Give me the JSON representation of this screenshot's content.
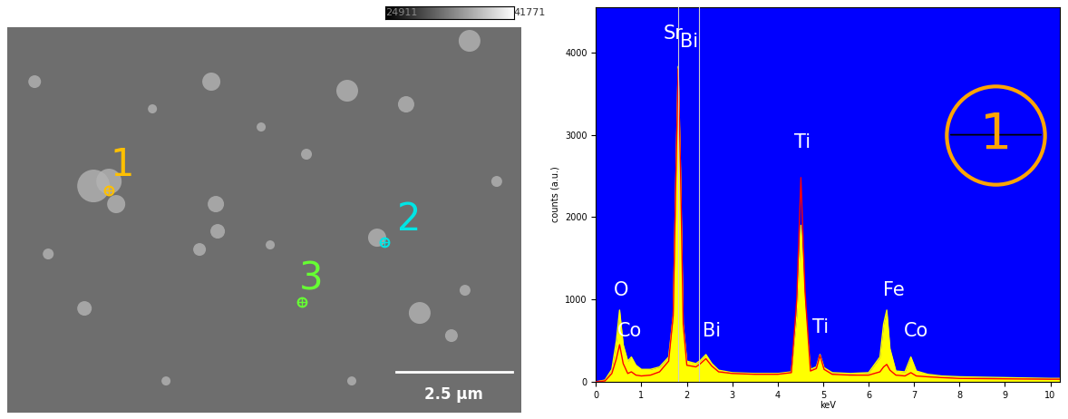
{
  "sem_image": {
    "colorbar_min": 24911,
    "colorbar_max": 41771,
    "scale_bar": "2.5 µm",
    "points": [
      {
        "label": "1",
        "color": "#ffc000"
      },
      {
        "label": "2",
        "color": "#00e5e5"
      },
      {
        "label": "3",
        "color": "#66ff33"
      }
    ]
  },
  "chart_data": {
    "type": "line",
    "xlabel": "keV",
    "ylabel": "counts (a.u.)",
    "x": [
      0.0,
      0.2,
      0.35,
      0.45,
      0.52,
      0.6,
      0.7,
      0.78,
      0.88,
      1.0,
      1.2,
      1.4,
      1.6,
      1.7,
      1.76,
      1.81,
      1.86,
      1.92,
      2.0,
      2.2,
      2.3,
      2.42,
      2.55,
      2.7,
      3.0,
      3.5,
      4.0,
      4.3,
      4.42,
      4.51,
      4.6,
      4.72,
      4.85,
      4.93,
      5.02,
      5.2,
      5.6,
      6.0,
      6.25,
      6.33,
      6.4,
      6.47,
      6.6,
      6.8,
      6.93,
      7.05,
      7.3,
      7.6,
      8.0,
      9.0,
      10.0,
      10.2
    ],
    "series": [
      {
        "type": "area",
        "color": "#ffff00",
        "values": [
          0,
          20,
          150,
          500,
          870,
          450,
          250,
          300,
          200,
          150,
          150,
          180,
          300,
          800,
          2500,
          3830,
          2600,
          700,
          250,
          220,
          260,
          330,
          220,
          140,
          110,
          100,
          100,
          120,
          800,
          1900,
          900,
          150,
          180,
          330,
          170,
          110,
          100,
          110,
          300,
          700,
          870,
          400,
          130,
          120,
          300,
          130,
          90,
          70,
          60,
          50,
          40,
          40
        ]
      },
      {
        "type": "line",
        "color": "#ff0000",
        "values": [
          0,
          10,
          100,
          280,
          450,
          220,
          100,
          120,
          80,
          70,
          80,
          120,
          250,
          800,
          2500,
          3800,
          2600,
          700,
          200,
          180,
          220,
          280,
          190,
          120,
          100,
          90,
          90,
          110,
          1000,
          2480,
          1100,
          130,
          160,
          320,
          150,
          90,
          80,
          80,
          120,
          180,
          210,
          140,
          80,
          70,
          110,
          70,
          60,
          50,
          40,
          35,
          30,
          30
        ]
      }
    ],
    "marker_lines": [
      1.81,
      2.27
    ],
    "xlim": [
      0,
      10.2
    ],
    "xticks": [
      0,
      1,
      2,
      3,
      4,
      5,
      6,
      7,
      8,
      9,
      10
    ],
    "ylim": [
      0,
      4550
    ],
    "yticks": [
      0,
      1000,
      2000,
      3000,
      4000
    ],
    "annotations": [
      {
        "text": "O",
        "x": 0.55,
        "y": 1000
      },
      {
        "text": "Co",
        "x": 0.75,
        "y": 500
      },
      {
        "text": "Sr",
        "x": 1.7,
        "y": 4120
      },
      {
        "text": "Bi",
        "x": 2.05,
        "y": 4020
      },
      {
        "text": "Bi",
        "x": 2.55,
        "y": 500
      },
      {
        "text": "Ti",
        "x": 4.55,
        "y": 2800
      },
      {
        "text": "Ti",
        "x": 4.95,
        "y": 550
      },
      {
        "text": "Fe",
        "x": 6.55,
        "y": 1000
      },
      {
        "text": "Co",
        "x": 7.05,
        "y": 500
      }
    ],
    "panel_label": {
      "text": "1",
      "x": 8.8,
      "y": 3000,
      "color": "#ffa500"
    }
  }
}
